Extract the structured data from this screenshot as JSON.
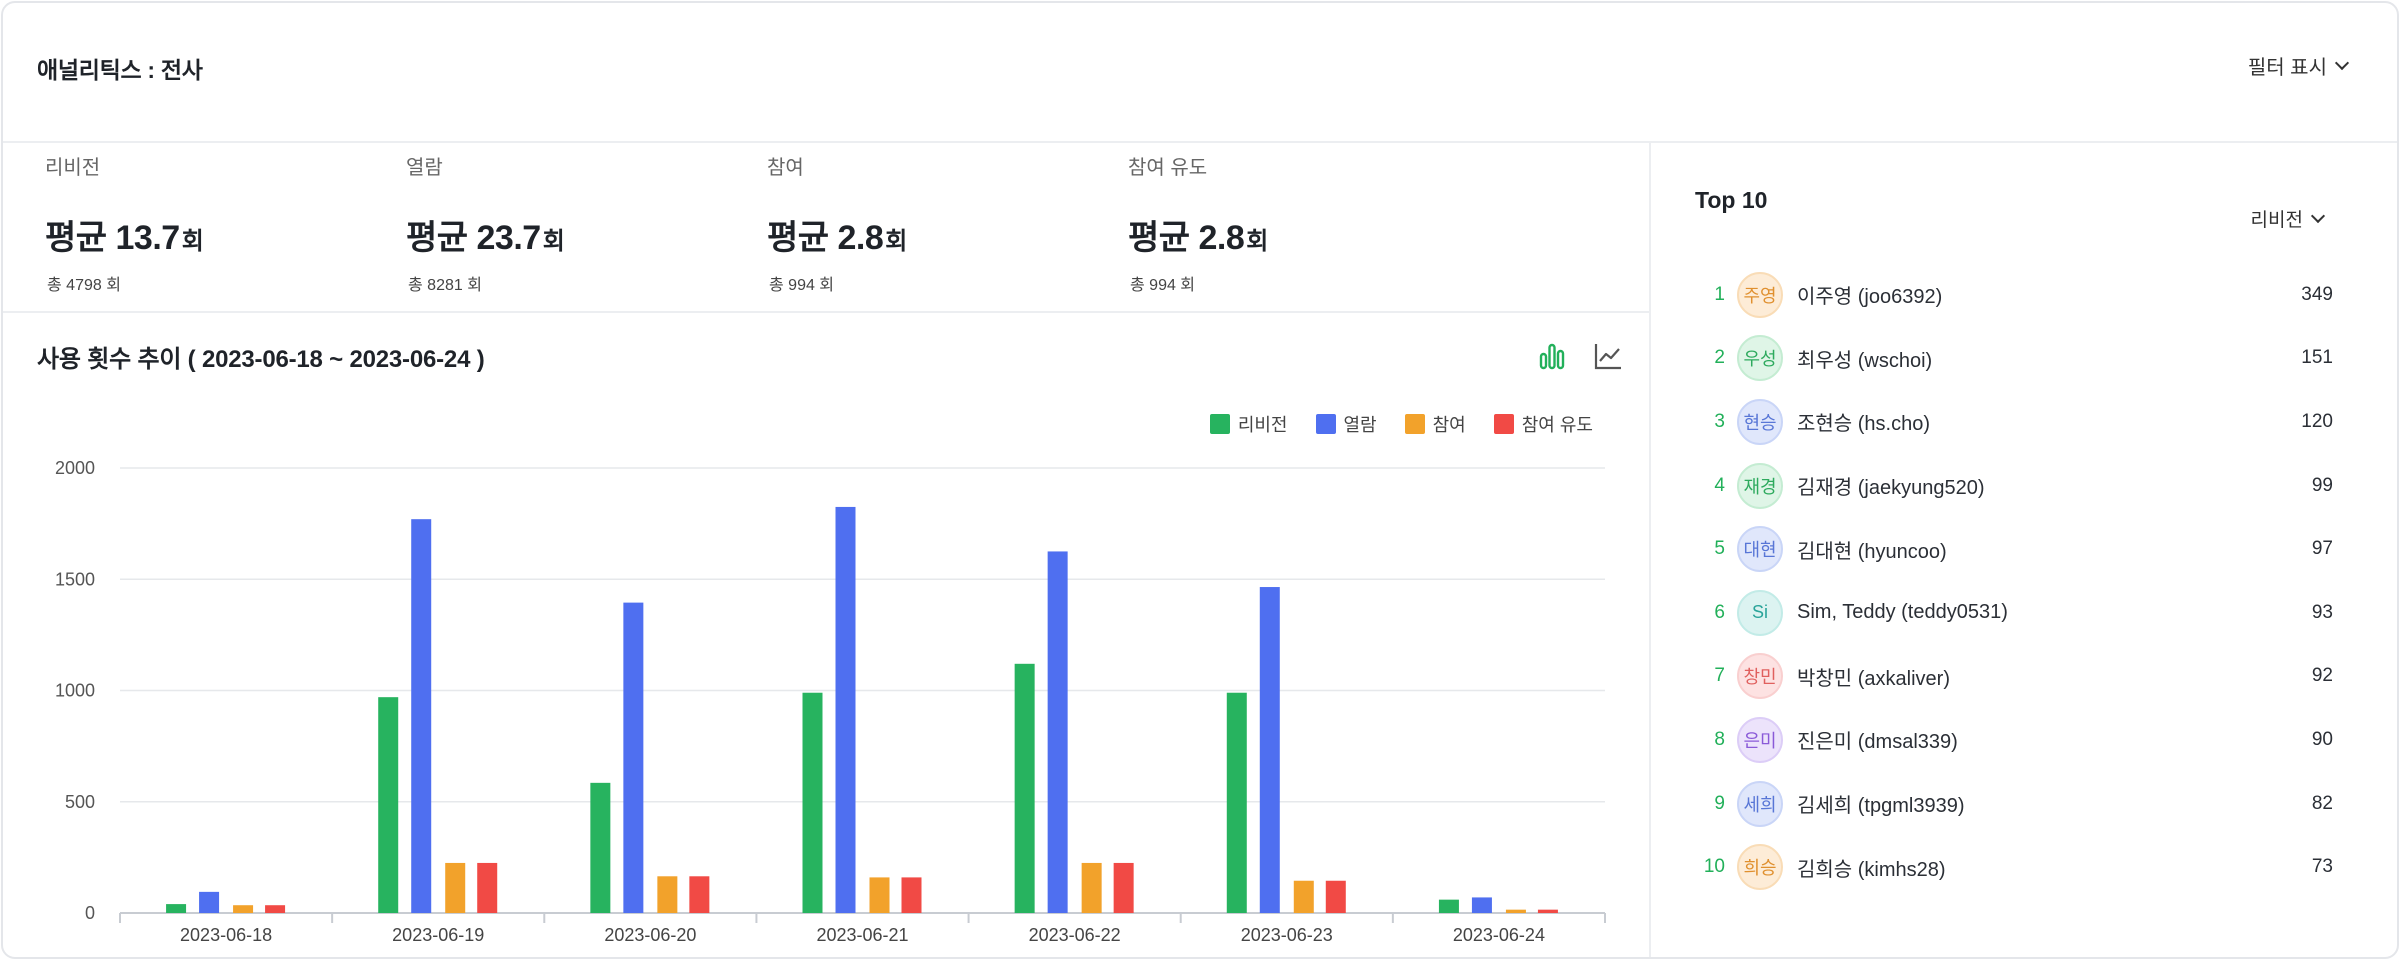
{
  "header": {
    "title": "애널리틱스 : 전사",
    "filter_label": "필터 표시"
  },
  "stats": [
    {
      "label": "리비전",
      "avg_prefix": "평균",
      "avg_value": "13.7",
      "unit": "회",
      "total": "총 4798 회"
    },
    {
      "label": "열람",
      "avg_prefix": "평균",
      "avg_value": "23.7",
      "unit": "회",
      "total": "총 8281 회"
    },
    {
      "label": "참여",
      "avg_prefix": "평균",
      "avg_value": "2.8",
      "unit": "회",
      "total": "총 994 회"
    },
    {
      "label": "참여 유도",
      "avg_prefix": "평균",
      "avg_value": "2.8",
      "unit": "회",
      "total": "총 994 회"
    }
  ],
  "chart_title": "사용 횟수 추이 ( 2023-06-18 ~ 2023-06-24 )",
  "view_toggle": {
    "bar_icon": "bar-chart-icon",
    "line_icon": "line-chart-icon",
    "active": "bar"
  },
  "colors": {
    "accent": "#22b05a",
    "revision": "#27b35f",
    "view": "#4f6ff0",
    "participate": "#f2a22b",
    "induce": "#f14a45"
  },
  "chart_data": {
    "type": "bar",
    "categories": [
      "2023-06-18",
      "2023-06-19",
      "2023-06-20",
      "2023-06-21",
      "2023-06-22",
      "2023-06-23",
      "2023-06-24"
    ],
    "series": [
      {
        "name": "리비전",
        "values": [
          40,
          970,
          585,
          990,
          1120,
          990,
          60
        ]
      },
      {
        "name": "열람",
        "values": [
          95,
          1770,
          1395,
          1825,
          1625,
          1465,
          70
        ]
      },
      {
        "name": "참여",
        "values": [
          35,
          225,
          165,
          160,
          225,
          145,
          15
        ]
      },
      {
        "name": "참여 유도",
        "values": [
          35,
          225,
          165,
          160,
          225,
          145,
          15
        ]
      }
    ],
    "ylim": [
      0,
      2000
    ],
    "yticks": [
      0,
      500,
      1000,
      1500,
      2000
    ],
    "legend_position": "top-right",
    "grid": true
  },
  "top10": {
    "title": "Top 10",
    "sort_label": "리비전",
    "items": [
      {
        "rank": "1",
        "avatar": "주영",
        "name": "이주영 (joo6392)",
        "value": "349"
      },
      {
        "rank": "2",
        "avatar": "우성",
        "name": "최우성 (wschoi)",
        "value": "151"
      },
      {
        "rank": "3",
        "avatar": "현승",
        "name": "조현승 (hs.cho)",
        "value": "120"
      },
      {
        "rank": "4",
        "avatar": "재경",
        "name": "김재경 (jaekyung520)",
        "value": "99"
      },
      {
        "rank": "5",
        "avatar": "대현",
        "name": "김대현 (hyuncoo)",
        "value": "97"
      },
      {
        "rank": "6",
        "avatar": "Si",
        "name": "Sim, Teddy (teddy0531)",
        "value": "93"
      },
      {
        "rank": "7",
        "avatar": "창민",
        "name": "박창민 (axkaliver)",
        "value": "92"
      },
      {
        "rank": "8",
        "avatar": "은미",
        "name": "진은미 (dmsal339)",
        "value": "90"
      },
      {
        "rank": "9",
        "avatar": "세희",
        "name": "김세희 (tpgml3939)",
        "value": "82"
      },
      {
        "rank": "10",
        "avatar": "희승",
        "name": "김희승 (kimhs28)",
        "value": "73"
      }
    ]
  }
}
